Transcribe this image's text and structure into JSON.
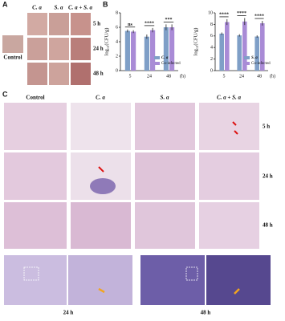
{
  "panel_a": {
    "label": "A",
    "columns": [
      "C. a",
      "S. a",
      "C. a + S. a"
    ],
    "rows": [
      "5 h",
      "24 h",
      "48 h"
    ],
    "control": "Control"
  },
  "panel_b": {
    "label": "B"
  },
  "chart_data": [
    {
      "type": "bar",
      "y_label": "log₁₀(CFU/g)",
      "x_label": "(h)",
      "categories": [
        "5",
        "24",
        "48"
      ],
      "series": [
        {
          "name": "C. a",
          "color": "#7f9fc7",
          "values": [
            5.5,
            4.7,
            6.0
          ],
          "errors": [
            0.2,
            0.3,
            0.4
          ]
        },
        {
          "name": "Co-infected",
          "color": "#a98bd6",
          "values": [
            5.4,
            5.6,
            6.0
          ],
          "errors": [
            0.2,
            0.3,
            0.4
          ]
        }
      ],
      "significance": [
        "ns",
        "****",
        "***"
      ],
      "ylim": [
        0,
        8
      ],
      "yticks": [
        0,
        2,
        4,
        6,
        8
      ],
      "legend": "lower right"
    },
    {
      "type": "bar",
      "y_label": "log₁₀(CFU/g)",
      "x_label": "(h)",
      "categories": [
        "5",
        "24",
        "48"
      ],
      "series": [
        {
          "name": "S. a",
          "color": "#7f9fc7",
          "values": [
            6.4,
            6.1,
            5.9
          ],
          "errors": [
            0.2,
            0.2,
            0.2
          ]
        },
        {
          "name": "Co-infected",
          "color": "#a98bd6",
          "values": [
            8.4,
            8.5,
            8.2
          ],
          "errors": [
            0.5,
            0.6,
            0.4
          ]
        }
      ],
      "significance": [
        "****",
        "****",
        "****"
      ],
      "ylim": [
        0,
        10
      ],
      "yticks": [
        0,
        2,
        4,
        6,
        8,
        10
      ],
      "legend": "lower right"
    }
  ],
  "panel_c": {
    "label": "C",
    "columns": [
      "Control",
      "C. a",
      "S. a",
      "C. a + S. a"
    ],
    "rows": [
      "5 h",
      "24 h",
      "48 h"
    ]
  },
  "panel_d": {
    "captions": [
      "24 h",
      "48 h"
    ]
  }
}
